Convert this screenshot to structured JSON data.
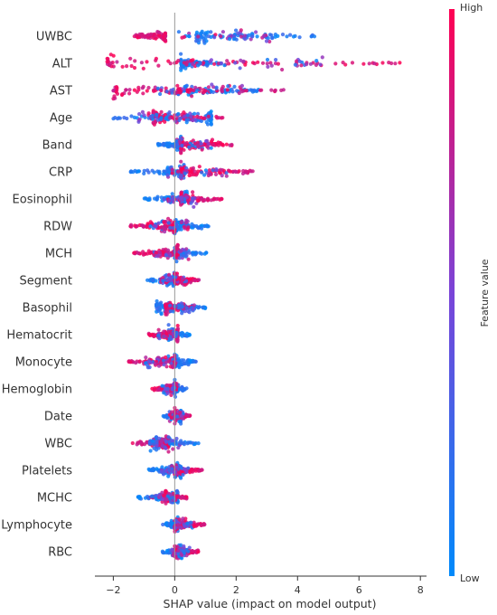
{
  "chart_data": {
    "type": "scatter",
    "subtype": "shap-beeswarm",
    "title": "",
    "xlabel": "SHAP value (impact on model output)",
    "xlim": [
      -2.6,
      8.2
    ],
    "xticks": [
      -2,
      0,
      2,
      4,
      6,
      8
    ],
    "x_tick_labels": [
      "−2",
      "0",
      "2",
      "4",
      "6",
      "8"
    ],
    "zero_line": 0,
    "features": [
      {
        "name": "UWBC",
        "low_range": [
          0.7,
          4.7
        ],
        "high_range": [
          -1.4,
          -0.3
        ],
        "density": "left-red-cluster, long blue tail"
      },
      {
        "name": "ALT",
        "low_range": [
          0.2,
          1.5
        ],
        "high_range": [
          -2.2,
          7.8
        ],
        "density": "wide spread both sides"
      },
      {
        "name": "AST",
        "low_range": [
          0.1,
          2.8
        ],
        "high_range": [
          -2.0,
          3.8
        ],
        "density": "centered, right tail"
      },
      {
        "name": "Age",
        "low_range": [
          -2.1,
          1.2
        ],
        "high_range": [
          -0.7,
          1.6
        ],
        "density": "centered"
      },
      {
        "name": "Band",
        "low_range": [
          -0.6,
          0.2
        ],
        "high_range": [
          0.2,
          1.9
        ],
        "density": "blue left, red right"
      },
      {
        "name": "CRP",
        "low_range": [
          -1.5,
          0.3
        ],
        "high_range": [
          0.2,
          2.8
        ],
        "density": "blue left, red right"
      },
      {
        "name": "Eosinophil",
        "low_range": [
          -1.0,
          0.4
        ],
        "high_range": [
          0.2,
          1.6
        ],
        "density": "centered"
      },
      {
        "name": "RDW",
        "low_range": [
          0.0,
          1.1
        ],
        "high_range": [
          -1.5,
          0.0
        ],
        "density": "red left, blue right"
      },
      {
        "name": "MCH",
        "low_range": [
          0.0,
          1.1
        ],
        "high_range": [
          -1.4,
          0.1
        ],
        "density": "red left, blue right"
      },
      {
        "name": "Segment",
        "low_range": [
          -0.9,
          0.0
        ],
        "high_range": [
          0.0,
          0.8
        ],
        "density": "narrow"
      },
      {
        "name": "Basophil",
        "low_range": [
          -0.6,
          1.1
        ],
        "high_range": [
          -0.3,
          0.6
        ],
        "density": "narrow"
      },
      {
        "name": "Hematocrit",
        "low_range": [
          -0.2,
          0.5
        ],
        "high_range": [
          -0.9,
          0.1
        ],
        "density": "red left"
      },
      {
        "name": "Monocyte",
        "low_range": [
          0.0,
          0.7
        ],
        "high_range": [
          -1.5,
          0.0
        ],
        "density": "red left"
      },
      {
        "name": "Hemoglobin",
        "low_range": [
          0.0,
          0.4
        ],
        "high_range": [
          -0.8,
          0.0
        ],
        "density": "red left"
      },
      {
        "name": "Date",
        "low_range": [
          -0.4,
          0.2
        ],
        "high_range": [
          0.0,
          0.5
        ],
        "density": "narrow"
      },
      {
        "name": "WBC",
        "low_range": [
          -0.6,
          0.8
        ],
        "high_range": [
          -1.4,
          -0.2
        ],
        "density": "red left"
      },
      {
        "name": "Platelets",
        "low_range": [
          -0.9,
          0.2
        ],
        "high_range": [
          0.0,
          0.9
        ],
        "density": "blue left, red right"
      },
      {
        "name": "MCHC",
        "low_range": [
          -1.2,
          0.1
        ],
        "high_range": [
          -0.3,
          0.4
        ],
        "density": "narrow"
      },
      {
        "name": "Lymphocyte",
        "low_range": [
          -0.4,
          0.1
        ],
        "high_range": [
          0.0,
          1.0
        ],
        "density": "red right"
      },
      {
        "name": "RBC",
        "low_range": [
          -0.4,
          0.2
        ],
        "high_range": [
          0.0,
          0.8
        ],
        "density": "narrow"
      }
    ],
    "colorbar": {
      "label": "Feature value",
      "high_label": "High",
      "low_label": "Low",
      "color_low": "#008afb",
      "color_high": "#ff0052",
      "placement": "right"
    },
    "grid": false,
    "legend": "colorbar-right"
  }
}
